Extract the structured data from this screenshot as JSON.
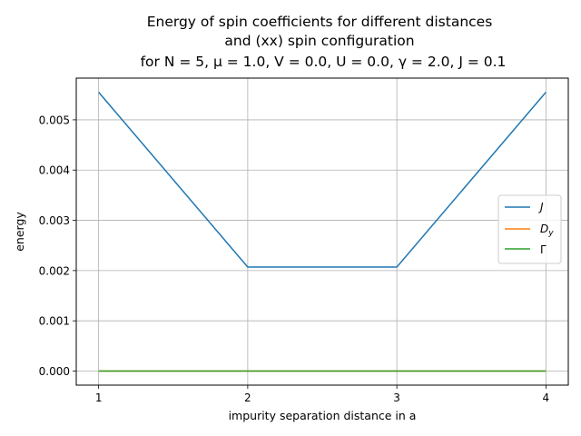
{
  "chart_data": {
    "type": "line",
    "title_lines": [
      "Energy of spin coefficients for different distances",
      "and (xx) spin configuration",
      "for N = 5, μ =  1.0, V = 0.0, U = 0.0, γ = 2.0, J = 0.1"
    ],
    "xlabel": "impurity separation distance in a",
    "ylabel": "energy",
    "x": [
      1,
      2,
      3,
      4
    ],
    "xlim": [
      0.85,
      4.15
    ],
    "ylim": [
      -0.00028,
      0.00583
    ],
    "xticks": [
      1,
      2,
      3,
      4
    ],
    "yticks": [
      0.0,
      0.001,
      0.002,
      0.003,
      0.004,
      0.005
    ],
    "ytick_labels": [
      "0.000",
      "0.001",
      "0.002",
      "0.003",
      "0.004",
      "0.005"
    ],
    "grid": true,
    "legend_position": "center-right",
    "series": [
      {
        "name": "J",
        "color": "#1f77b4",
        "values": [
          0.00555,
          0.00207,
          0.00207,
          0.00555
        ]
      },
      {
        "name": "Dy",
        "color": "#ff7f0e",
        "values": [
          0.0,
          0.0,
          0.0,
          0.0
        ]
      },
      {
        "name": "Γ",
        "color": "#2ca02c",
        "values": [
          0.0,
          0.0,
          0.0,
          0.0
        ]
      }
    ]
  }
}
